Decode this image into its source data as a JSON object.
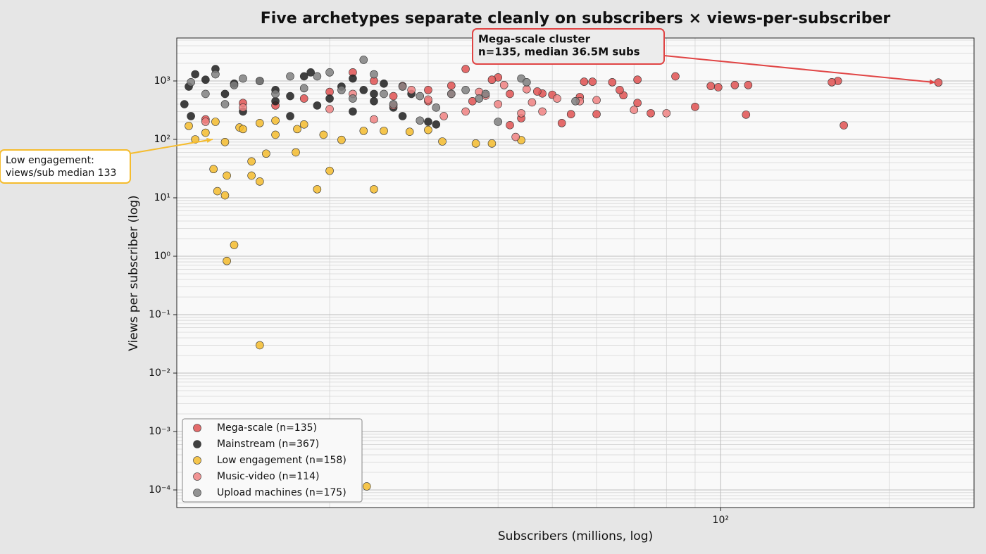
{
  "chart_data": {
    "type": "scatter",
    "title": "Five archetypes separate cleanly on subscribers × views-per-subscriber",
    "xlabel": "Subscribers (millions, log)",
    "ylabel": "Views per subscriber (log)",
    "xscale": "log",
    "yscale": "log",
    "xlim": [
      10.66,
      283.7
    ],
    "ylim": [
      5e-05,
      5430
    ],
    "xticks": [
      {
        "value": 100,
        "label": "10²"
      }
    ],
    "yticks": [
      {
        "value": 0.0001,
        "label": "10⁻⁴"
      },
      {
        "value": 0.001,
        "label": "10⁻³"
      },
      {
        "value": 0.01,
        "label": "10⁻²"
      },
      {
        "value": 0.1,
        "label": "10⁻¹"
      },
      {
        "value": 1,
        "label": "10⁰"
      },
      {
        "value": 10,
        "label": "10¹"
      },
      {
        "value": 100,
        "label": "10²"
      },
      {
        "value": 1000,
        "label": "10³"
      }
    ],
    "grid": "both",
    "legend": "lower left",
    "series": [
      {
        "name": "Mega-scale (n=135)",
        "color": "#e05252",
        "x": [
          245,
          162,
          158,
          166,
          112,
          106,
          96,
          111,
          99,
          90,
          83,
          71,
          71,
          75,
          67,
          64,
          66,
          59,
          57,
          60,
          56,
          54,
          52,
          48,
          47,
          44,
          42,
          40,
          39,
          35,
          33,
          30,
          27,
          24,
          22,
          20,
          18,
          16,
          14,
          12,
          30,
          26,
          36,
          42,
          50
        ],
        "y": [
          940,
          1000,
          950,
          174,
          850,
          850,
          820,
          265,
          780,
          360,
          1200,
          1050,
          420,
          280,
          570,
          950,
          700,
          970,
          970,
          270,
          530,
          270,
          190,
          610,
          660,
          230,
          175,
          1150,
          1050,
          1600,
          830,
          700,
          820,
          1000,
          1400,
          650,
          500,
          380,
          420,
          220,
          450,
          550,
          450,
          600,
          580
        ]
      },
      {
        "name": "Mainstream (n=367)",
        "color": "#1e1e1e",
        "x": [
          11.5,
          12,
          12.5,
          11.2,
          11,
          13,
          14,
          15,
          16,
          17,
          18,
          18.5,
          20,
          21,
          22,
          23,
          24,
          25,
          26,
          27,
          30,
          31,
          28,
          11.3,
          13.5,
          16,
          19,
          22,
          24,
          17
        ],
        "y": [
          1300,
          1050,
          1600,
          800,
          400,
          600,
          300,
          1000,
          700,
          250,
          1200,
          1400,
          500,
          800,
          300,
          700,
          450,
          900,
          350,
          250,
          200,
          180,
          600,
          250,
          900,
          450,
          380,
          1100,
          600,
          550
        ]
      },
      {
        "name": "Low engagement (n=158)",
        "color": "#f5bc2e",
        "x": [
          12.4,
          12.6,
          13,
          13.1,
          13.5,
          13.1,
          15,
          14.5,
          14.5,
          15,
          15.4,
          17.4,
          19,
          20,
          24,
          23.3,
          36.5,
          39,
          44,
          31.8,
          30,
          27.8,
          25,
          23,
          21,
          19.5,
          17.5,
          16,
          15,
          13.8,
          11.2,
          11.5,
          12,
          12.5,
          13,
          14,
          16,
          18
        ],
        "y": [
          31,
          13,
          11,
          24,
          1.56,
          0.83,
          0.03,
          42,
          24,
          19,
          57,
          60,
          14,
          29,
          14,
          0.000115,
          85,
          85,
          97,
          92,
          145,
          135,
          140,
          140,
          98,
          120,
          150,
          210,
          190,
          160,
          170,
          100,
          130,
          200,
          90,
          150,
          120,
          180
        ]
      },
      {
        "name": "Music-video (n=114)",
        "color": "#f08282",
        "x": [
          48,
          46,
          44,
          51,
          56,
          60,
          70,
          80,
          41,
          38,
          35,
          32,
          30,
          28,
          26,
          24,
          22,
          20,
          33,
          37,
          43,
          45,
          40,
          12,
          14
        ],
        "y": [
          300,
          430,
          280,
          500,
          450,
          470,
          320,
          280,
          850,
          560,
          300,
          250,
          480,
          700,
          380,
          220,
          600,
          330,
          600,
          650,
          110,
          720,
          400,
          200,
          350
        ]
      },
      {
        "name": "Upload machines (n=175)",
        "color": "#808080",
        "x": [
          11.3,
          12.5,
          13.5,
          14,
          15,
          16,
          17,
          18,
          19,
          20,
          21,
          23,
          24,
          25,
          26,
          27,
          29,
          31,
          33,
          35,
          38,
          40,
          44,
          45,
          55,
          29,
          37,
          12,
          13,
          22
        ],
        "y": [
          950,
          1300,
          850,
          1100,
          1000,
          600,
          1200,
          750,
          1200,
          1400,
          700,
          2300,
          1300,
          600,
          400,
          800,
          550,
          350,
          600,
          700,
          600,
          200,
          1100,
          950,
          450,
          210,
          500,
          600,
          400,
          500
        ]
      }
    ],
    "annotations": [
      {
        "text": [
          "Mega-scale cluster",
          "n=135, median 36.5M subs"
        ],
        "target": [
          245,
          940
        ],
        "color": "#e04444"
      },
      {
        "text": [
          "Low engagement:",
          "views/sub median 133"
        ],
        "target": [
          12.5,
          100
        ],
        "color": "#f5bc2e"
      }
    ]
  }
}
